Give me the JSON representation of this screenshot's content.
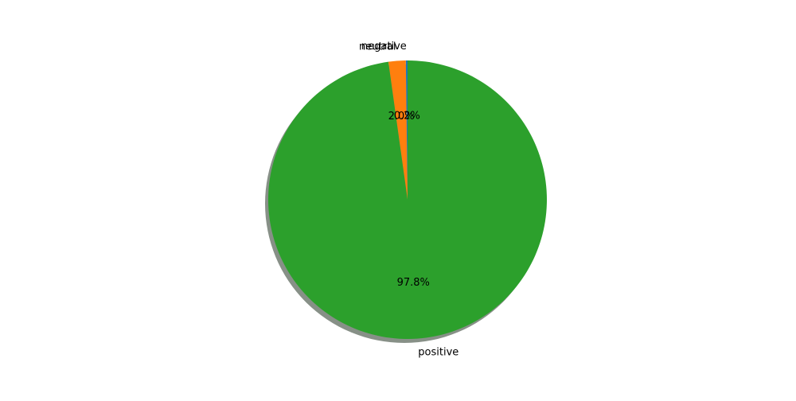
{
  "chart_data": {
    "type": "pie",
    "slices": [
      {
        "label": "negative",
        "value": 0.2,
        "pct_label": "0.2%",
        "color": "#1f77b4"
      },
      {
        "label": "neutral",
        "value": 2.0,
        "pct_label": "2.0%",
        "color": "#ff7f0e"
      },
      {
        "label": "positive",
        "value": 97.8,
        "pct_label": "97.8%",
        "color": "#2ca02c"
      }
    ],
    "start_angle_deg": 90,
    "direction": "counterclockwise",
    "shadow": true,
    "legend": "none"
  }
}
